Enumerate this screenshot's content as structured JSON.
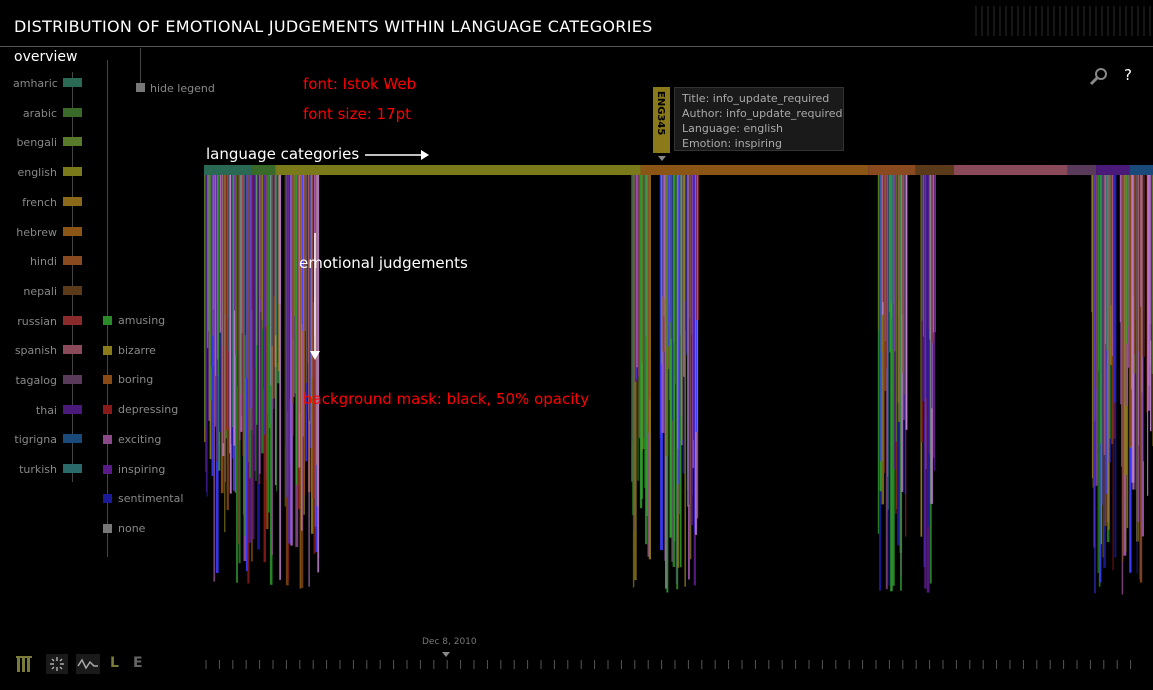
{
  "header": {
    "title": "DISTRIBUTION OF EMOTIONAL JUDGEMENTS WITHIN LANGUAGE CATEGORIES",
    "overview": "overview"
  },
  "legend": {
    "hide_label": "hide legend",
    "languages": [
      {
        "name": "amharic",
        "color": "#2a6a55"
      },
      {
        "name": "arabic",
        "color": "#3a6a2a"
      },
      {
        "name": "bengali",
        "color": "#587a2a"
      },
      {
        "name": "english",
        "color": "#7a7a1a"
      },
      {
        "name": "french",
        "color": "#8a6a1a"
      },
      {
        "name": "hebrew",
        "color": "#8a5515"
      },
      {
        "name": "hindi",
        "color": "#8a4a20"
      },
      {
        "name": "nepali",
        "color": "#5a3a18"
      },
      {
        "name": "russian",
        "color": "#8a2a2a"
      },
      {
        "name": "spanish",
        "color": "#8a4a5a"
      },
      {
        "name": "tagalog",
        "color": "#5a3a5a"
      },
      {
        "name": "thai",
        "color": "#4a1a7a"
      },
      {
        "name": "tigrigna",
        "color": "#1a4a7a"
      },
      {
        "name": "turkish",
        "color": "#2a6a6a"
      }
    ],
    "emotions": [
      {
        "name": "amusing",
        "color": "#2a8a2a"
      },
      {
        "name": "bizarre",
        "color": "#8a7a1a"
      },
      {
        "name": "boring",
        "color": "#8a4a15"
      },
      {
        "name": "depressing",
        "color": "#8a1a1a"
      },
      {
        "name": "exciting",
        "color": "#8a4a8a"
      },
      {
        "name": "inspiring",
        "color": "#5a1a8a"
      },
      {
        "name": "sentimental",
        "color": "#1a1a9a"
      },
      {
        "name": "none",
        "color": "#777777"
      }
    ]
  },
  "annotations": {
    "font": "font: Istok Web",
    "font_size": "font size: 17pt",
    "language_categories": "language categories",
    "emotional_judgements": "emotional judgements",
    "background_mask": "background mask: black, 50% opacity"
  },
  "tooltip": {
    "tag": "ENG345",
    "title": "Title: info_update_required",
    "author": "Author: info_update_required",
    "language": "Language: english",
    "emotion": "Emotion: inspiring"
  },
  "toolbar": {
    "search_icon": "search-icon",
    "help_label": "?"
  },
  "timeline": {
    "date_label": "Dec 8, 2010",
    "buttons": [
      "bars-icon",
      "spinner-icon",
      "wave-icon",
      "L",
      "E"
    ]
  },
  "chart_data": {
    "type": "bar",
    "title": "DISTRIBUTION OF EMOTIONAL JUDGEMENTS WITHIN LANGUAGE CATEGORIES",
    "xlabel": "",
    "ylabel": "",
    "category_band": [
      {
        "language": "amharic",
        "start": 0.0,
        "end": 0.05
      },
      {
        "language": "arabic",
        "start": 0.05,
        "end": 0.075
      },
      {
        "language": "english",
        "start": 0.075,
        "end": 0.46
      },
      {
        "language": "hebrew",
        "start": 0.46,
        "end": 0.7
      },
      {
        "language": "hindi",
        "start": 0.7,
        "end": 0.75
      },
      {
        "language": "nepali",
        "start": 0.75,
        "end": 0.79
      },
      {
        "language": "spanish",
        "start": 0.79,
        "end": 0.91
      },
      {
        "language": "tagalog",
        "start": 0.91,
        "end": 0.94
      },
      {
        "language": "thai",
        "start": 0.94,
        "end": 0.975
      },
      {
        "language": "tigrigna",
        "start": 0.975,
        "end": 1.0
      }
    ],
    "clusters": [
      {
        "start": 0.0,
        "end": 0.08
      },
      {
        "start": 0.085,
        "end": 0.12
      },
      {
        "start": 0.45,
        "end": 0.47
      },
      {
        "start": 0.48,
        "end": 0.52
      },
      {
        "start": 0.71,
        "end": 0.74
      },
      {
        "start": 0.755,
        "end": 0.77
      },
      {
        "start": 0.935,
        "end": 0.96
      },
      {
        "start": 0.965,
        "end": 0.99
      },
      {
        "start": 0.993,
        "end": 1.0
      }
    ]
  }
}
